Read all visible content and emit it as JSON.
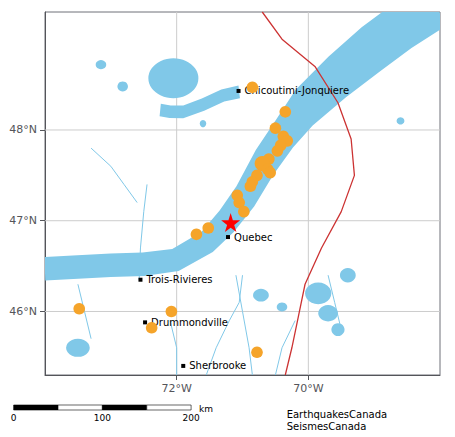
{
  "chart_data": {
    "type": "scatter",
    "xlim": [
      -74.0,
      -68.0
    ],
    "ylim": [
      45.3,
      49.3
    ],
    "xticks": [
      {
        "value": -72,
        "label": "72°W"
      },
      {
        "value": -70,
        "label": "70°W"
      }
    ],
    "yticks": [
      {
        "value": 46,
        "label": "46°N"
      },
      {
        "value": 47,
        "label": "47°N"
      },
      {
        "value": 48,
        "label": "48°N"
      }
    ],
    "grid": true,
    "series": [
      {
        "type": "polygon",
        "color": "#80c8e8",
        "values": [
          [
            -74.0072,
            46.5999
          ],
          [
            -73.5072,
            46.6199
          ],
          [
            -73.0036,
            46.64
          ],
          [
            -72.5179,
            46.6491
          ],
          [
            -72.0669,
            46.6871
          ],
          [
            -71.6217,
            46.8787
          ],
          [
            -71.3472,
            47.1135
          ],
          [
            -71.0921,
            47.38
          ],
          [
            -70.798,
            47.778
          ],
          [
            -70.5007,
            48.103
          ],
          [
            -70.1928,
            48.4421
          ],
          [
            -69.6955,
            48.8058
          ],
          [
            -69.1901,
            49.132
          ],
          [
            -68.6672,
            49.4134
          ],
          [
            -68.1672,
            49.6434
          ],
          [
            -67.9331,
            49.1346
          ],
          [
            -68.4331,
            48.9046
          ],
          [
            -68.924,
            48.6392
          ],
          [
            -69.428,
            48.36
          ],
          [
            -69.9339,
            48.0498
          ],
          [
            -70.2331,
            47.8057
          ],
          [
            -70.5293,
            47.5093
          ],
          [
            -70.8232,
            47.156
          ],
          [
            -71.1331,
            46.8757
          ],
          [
            -71.4513,
            46.6565
          ],
          [
            -71.9703,
            46.4457
          ],
          [
            -72.492,
            46.3904
          ],
          [
            -72.9984,
            46.38
          ],
          [
            -73.4968,
            46.3601
          ],
          [
            -73.9968,
            46.3401
          ]
        ]
      },
      {
        "type": "polygon",
        "color": "#80c8e8",
        "values": [
          [
            -71.0389,
            48.3509
          ],
          [
            -71.2779,
            48.3136
          ],
          [
            -71.582,
            48.2124
          ],
          [
            -71.9,
            48.13
          ],
          [
            -72.1093,
            48.1306
          ],
          [
            -72.2593,
            48.1506
          ],
          [
            -72.2407,
            48.2894
          ],
          [
            -72.0907,
            48.2694
          ],
          [
            -71.9,
            48.27
          ],
          [
            -71.618,
            48.3476
          ],
          [
            -71.3221,
            48.4464
          ],
          [
            -71.0611,
            48.4891
          ]
        ]
      },
      {
        "type": "ellipse",
        "color": "#80c8e8",
        "values": [
          [
            -72.05,
            48.57,
            0.38,
            0.22
          ]
        ]
      },
      {
        "type": "ellipse",
        "color": "#80c8e8",
        "values": [
          [
            -72.82,
            48.48,
            0.08,
            0.055
          ],
          [
            -71.6,
            48.07,
            0.05,
            0.04
          ],
          [
            -70.72,
            46.18,
            0.12,
            0.07
          ],
          [
            -70.4,
            46.05,
            0.08,
            0.05
          ],
          [
            -69.85,
            46.2,
            0.2,
            0.12
          ],
          [
            -69.7,
            45.98,
            0.15,
            0.09
          ],
          [
            -69.55,
            45.8,
            0.1,
            0.07
          ],
          [
            -69.4,
            46.4,
            0.12,
            0.08
          ],
          [
            -73.5,
            45.6,
            0.18,
            0.1
          ],
          [
            -68.6,
            48.1,
            0.06,
            0.04
          ]
        ]
      },
      {
        "type": "ellipse",
        "color": "#80c8e8",
        "values": [
          [
            -73.15,
            48.72,
            0.08,
            0.05
          ]
        ]
      },
      {
        "type": "line",
        "color": "#80c8e8",
        "values": [
          [
            -72.57,
            46.35
          ],
          [
            -72.55,
            46.7
          ],
          [
            -72.5,
            47.1
          ],
          [
            -72.45,
            47.4
          ]
        ]
      },
      {
        "type": "line",
        "color": "#80c8e8",
        "values": [
          [
            -71.55,
            45.3
          ],
          [
            -71.4,
            45.6
          ],
          [
            -71.2,
            45.9
          ],
          [
            -71.05,
            46.1
          ],
          [
            -71.0,
            46.4
          ]
        ]
      },
      {
        "type": "line",
        "color": "#80c8e8",
        "values": [
          [
            -70.85,
            45.3
          ],
          [
            -70.9,
            45.6
          ],
          [
            -71.0,
            46.0
          ],
          [
            -71.1,
            46.4
          ]
        ]
      },
      {
        "type": "line",
        "color": "#80c8e8",
        "values": [
          [
            -73.3,
            47.8
          ],
          [
            -73.0,
            47.6
          ],
          [
            -72.8,
            47.4
          ],
          [
            -72.6,
            47.2
          ]
        ]
      },
      {
        "type": "line",
        "color": "#80c8e8",
        "values": [
          [
            -72.0,
            45.3
          ],
          [
            -72.0,
            45.6
          ],
          [
            -72.1,
            45.9
          ]
        ]
      },
      {
        "type": "line",
        "color": "#80c8e8",
        "values": [
          [
            -70.5,
            45.3
          ],
          [
            -70.4,
            45.6
          ],
          [
            -70.2,
            45.9
          ]
        ]
      },
      {
        "type": "line",
        "color": "#80c8e8",
        "values": [
          [
            -69.5,
            45.8
          ],
          [
            -69.6,
            46.1
          ],
          [
            -69.7,
            46.4
          ]
        ]
      },
      {
        "type": "line",
        "color": "#80c8e8",
        "values": [
          [
            -73.5,
            46.3
          ],
          [
            -73.4,
            46.0
          ],
          [
            -73.3,
            45.7
          ]
        ]
      },
      {
        "type": "line",
        "color": "#cc3333",
        "values": [
          [
            -70.7,
            49.3
          ],
          [
            -70.4,
            49.0
          ],
          [
            -69.9,
            48.7
          ],
          [
            -69.55,
            48.3
          ],
          [
            -69.35,
            47.9
          ],
          [
            -69.3,
            47.5
          ],
          [
            -69.5,
            47.1
          ],
          [
            -69.8,
            46.7
          ],
          [
            -70.05,
            46.3
          ],
          [
            -70.15,
            45.95
          ],
          [
            -70.25,
            45.6
          ],
          [
            -70.35,
            45.3
          ]
        ]
      },
      {
        "type": "scatter",
        "marker": "square",
        "color": "black",
        "values": [
          [
            -71.06,
            48.43
          ],
          [
            -71.22,
            46.82
          ],
          [
            -72.55,
            46.35
          ],
          [
            -72.48,
            45.88
          ],
          [
            -71.9,
            45.4
          ]
        ],
        "labels": [
          "Chicoutimi-Jonquiere",
          "Quebec",
          "Trois-Rivieres",
          "Drummondville",
          "Sherbrooke"
        ]
      },
      {
        "type": "scatter",
        "marker": "circle",
        "color": "#f5a42a",
        "values": [
          [
            -70.85,
            48.47
          ],
          [
            -70.35,
            48.2
          ],
          [
            -70.5,
            48.02
          ],
          [
            -70.38,
            47.93
          ],
          [
            -70.32,
            47.88
          ],
          [
            -70.42,
            47.83
          ],
          [
            -70.47,
            47.77
          ],
          [
            -70.6,
            47.68
          ],
          [
            -70.7,
            47.63
          ],
          [
            -70.62,
            47.57
          ],
          [
            -70.58,
            47.53
          ],
          [
            -70.78,
            47.5
          ],
          [
            -70.85,
            47.43
          ],
          [
            -70.88,
            47.38
          ],
          [
            -71.08,
            47.28
          ],
          [
            -71.05,
            47.2
          ],
          [
            -70.98,
            47.1
          ],
          [
            -71.52,
            46.92
          ],
          [
            -71.7,
            46.85
          ],
          [
            -72.08,
            46.0
          ],
          [
            -72.38,
            45.82
          ],
          [
            -73.48,
            46.03
          ],
          [
            -70.78,
            45.55
          ]
        ],
        "sizes": [
          70,
          70,
          70,
          70,
          70,
          70,
          70,
          70,
          120,
          70,
          70,
          70,
          70,
          70,
          70,
          70,
          70,
          70,
          70,
          70,
          70,
          70,
          70
        ]
      },
      {
        "type": "scatter",
        "marker": "star",
        "color": "red",
        "values": [
          [
            -71.18,
            46.98
          ]
        ]
      }
    ],
    "scale_bar": {
      "labels": [
        "0",
        "100",
        "200"
      ],
      "unit": "km"
    },
    "annotations": [
      "EarthquakesCanada\nSeismesCanada"
    ]
  }
}
